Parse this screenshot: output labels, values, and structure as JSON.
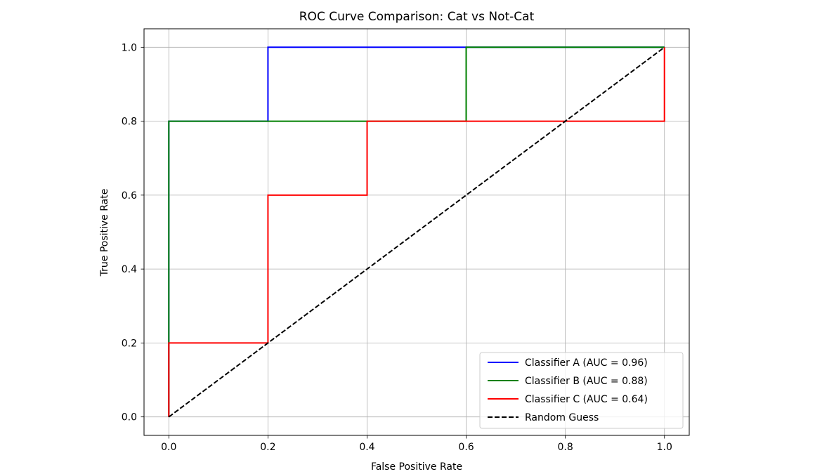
{
  "chart_data": {
    "type": "line",
    "title": "ROC Curve Comparison: Cat vs Not-Cat",
    "xlabel": "False Positive Rate",
    "ylabel": "True Positive Rate",
    "xlim": [
      -0.05,
      1.05
    ],
    "ylim": [
      -0.05,
      1.05
    ],
    "xticks": [
      0.0,
      0.2,
      0.4,
      0.6,
      0.8,
      1.0
    ],
    "yticks": [
      0.0,
      0.2,
      0.4,
      0.6,
      0.8,
      1.0
    ],
    "xtick_labels": [
      "0.0",
      "0.2",
      "0.4",
      "0.6",
      "0.8",
      "1.0"
    ],
    "ytick_labels": [
      "0.0",
      "0.2",
      "0.4",
      "0.6",
      "0.8",
      "1.0"
    ],
    "grid": true,
    "legend_position": "lower-right",
    "series": [
      {
        "name": "Classifier A (AUC = 0.96)",
        "color": "#0000ff",
        "style": "solid",
        "x": [
          0.0,
          0.0,
          0.2,
          0.2,
          0.6,
          1.0
        ],
        "y": [
          0.0,
          0.8,
          0.8,
          1.0,
          1.0,
          1.0
        ]
      },
      {
        "name": "Classifier B (AUC = 0.88)",
        "color": "#008000",
        "style": "solid",
        "x": [
          0.0,
          0.0,
          0.6,
          0.6,
          1.0
        ],
        "y": [
          0.0,
          0.8,
          0.8,
          1.0,
          1.0
        ]
      },
      {
        "name": "Classifier C (AUC = 0.64)",
        "color": "#ff0000",
        "style": "solid",
        "x": [
          0.0,
          0.0,
          0.2,
          0.2,
          0.4,
          0.4,
          1.0,
          1.0
        ],
        "y": [
          0.0,
          0.2,
          0.2,
          0.6,
          0.6,
          0.8,
          0.8,
          1.0
        ]
      },
      {
        "name": "Random Guess",
        "color": "#000000",
        "style": "dashed",
        "x": [
          0.0,
          1.0
        ],
        "y": [
          0.0,
          1.0
        ]
      }
    ]
  }
}
